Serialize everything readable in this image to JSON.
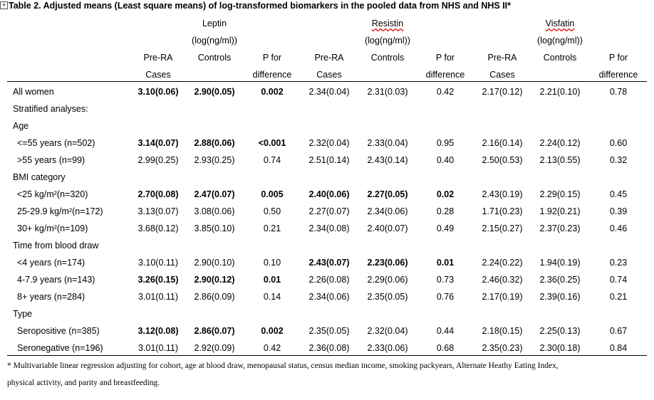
{
  "header": {
    "title": "Table 2. Adjusted means (Least square means) of log-transformed biomarkers in the pooled data from NHS and NHS II*",
    "groups": [
      {
        "name": "Leptin",
        "unit": "(log(ng/ml))"
      },
      {
        "name": "Resistin",
        "unit": "(log(ng/ml))"
      },
      {
        "name": "Visfatin",
        "unit": "(log(ng/ml))"
      }
    ],
    "columns": [
      [
        "Pre-RA",
        "Cases"
      ],
      [
        "Controls"
      ],
      [
        "P for",
        "difference"
      ]
    ]
  },
  "table": {
    "rows": [
      {
        "label": "All women",
        "cells": [
          "3.10(0.06)",
          "2.90(0.05)",
          "0.002",
          "2.34(0.04)",
          "2.31(0.03)",
          "0.42",
          "2.17(0.12)",
          "2.21(0.10)",
          "0.78"
        ],
        "bold": [
          0,
          1,
          2
        ]
      },
      {
        "label": "Stratified analyses:"
      },
      {
        "label": "Age"
      },
      {
        "label": "<=55 years (n=502)",
        "indent": true,
        "cells": [
          "3.14(0.07)",
          "2.88(0.06)",
          "<0.001",
          "2.32(0.04)",
          "2.33(0.04)",
          "0.95",
          "2.16(0.14)",
          "2.24(0.12)",
          "0.60"
        ],
        "bold": [
          0,
          1,
          2
        ]
      },
      {
        "label": ">55 years (n=99)",
        "indent": true,
        "cells": [
          "2.99(0.25)",
          "2.93(0.25)",
          "0.74",
          "2.51(0.14)",
          "2.43(0.14)",
          "0.40",
          "2.50(0.53)",
          "2.13(0.55)",
          "0.32"
        ]
      },
      {
        "label": "BMI category"
      },
      {
        "label": "<25 kg/m²(n=320)",
        "indent": true,
        "cells": [
          "2.70(0.08)",
          "2.47(0.07)",
          "0.005",
          "2.40(0.06)",
          "2.27(0.05)",
          "0.02",
          "2.43(0.19)",
          "2.29(0.15)",
          "0.45"
        ],
        "bold": [
          0,
          1,
          2,
          3,
          4,
          5
        ]
      },
      {
        "label": "25-29.9 kg/m²(n=172)",
        "indent": true,
        "cells": [
          "3.13(0.07)",
          "3.08(0.06)",
          "0.50",
          "2.27(0.07)",
          "2.34(0.06)",
          "0.28",
          "1.71(0.23)",
          "1.92(0.21)",
          "0.39"
        ]
      },
      {
        "label": "30+ kg/m²(n=109)",
        "indent": true,
        "cells": [
          "3.68(0.12)",
          "3.85(0.10)",
          "0.21",
          "2.34(0.08)",
          "2.40(0.07)",
          "0.49",
          "2.15(0.27)",
          "2.37(0.23)",
          "0.46"
        ]
      },
      {
        "label": "Time from blood draw"
      },
      {
        "label": "<4 years (n=174)",
        "indent": true,
        "cells": [
          "3.10(0.11)",
          "2.90(0.10)",
          "0.10",
          "2.43(0.07)",
          "2.23(0.06)",
          "0.01",
          "2.24(0.22)",
          "1.94(0.19)",
          "0.23"
        ],
        "bold": [
          3,
          4,
          5
        ]
      },
      {
        "label": "4-7.9 years (n=143)",
        "indent": true,
        "cells": [
          "3.26(0.15)",
          "2.90(0.12)",
          "0.01",
          "2.26(0.08)",
          "2.29(0.06)",
          "0.73",
          "2.46(0.32)",
          "2.36(0.25)",
          "0.74"
        ],
        "bold": [
          0,
          1,
          2
        ]
      },
      {
        "label": "8+ years (n=284)",
        "indent": true,
        "cells": [
          "3.01(0.11)",
          "2.86(0.09)",
          "0.14",
          "2.34(0.06)",
          "2.35(0.05)",
          "0.76",
          "2.17(0.19)",
          "2.39(0.16)",
          "0.21"
        ]
      },
      {
        "label": "Type"
      },
      {
        "label": "Seropositive (n=385)",
        "indent": true,
        "cells": [
          "3.12(0.08)",
          "2.86(0.07)",
          "0.002",
          "2.35(0.05)",
          "2.32(0.04)",
          "0.44",
          "2.18(0.15)",
          "2.25(0.13)",
          "0.67"
        ],
        "bold": [
          0,
          1,
          2
        ]
      },
      {
        "label": "Seronegative (n=196)",
        "indent": true,
        "cells": [
          "3.01(0.11)",
          "2.92(0.09)",
          "0.42",
          "2.36(0.08)",
          "2.33(0.06)",
          "0.68",
          "2.35(0.23)",
          "2.30(0.18)",
          "0.84"
        ]
      }
    ]
  },
  "footnote": [
    "* Multivariable linear regression adjusting for cohort, age at blood draw, menopausal status, census median income, smoking packyears, Alternate Heathy Eating Index,",
    "physical activity, and parity and breastfeeding."
  ]
}
